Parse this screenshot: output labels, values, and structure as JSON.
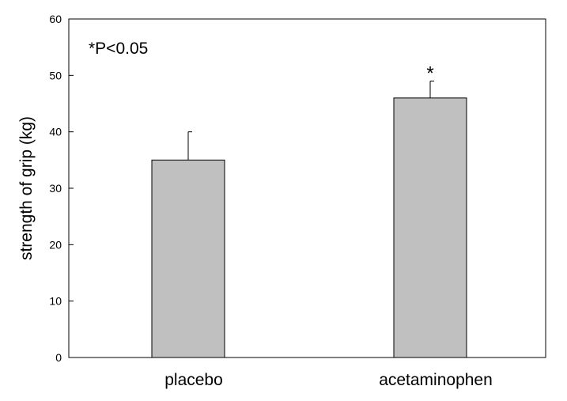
{
  "chart_data": {
    "type": "bar",
    "categories": [
      "placebo",
      "acetaminophen"
    ],
    "values": [
      35,
      46
    ],
    "error_upper": [
      40,
      49
    ],
    "significance": [
      "",
      "*"
    ],
    "title": "",
    "xlabel": "",
    "ylabel": "strength of grip (kg)",
    "ylim": [
      0,
      60
    ],
    "yticks": [
      0,
      10,
      20,
      30,
      40,
      50,
      60
    ],
    "annotation": "*P<0.05",
    "grid": false,
    "bar_color": "#c0c0c0",
    "bar_edge_color": "#000000"
  }
}
